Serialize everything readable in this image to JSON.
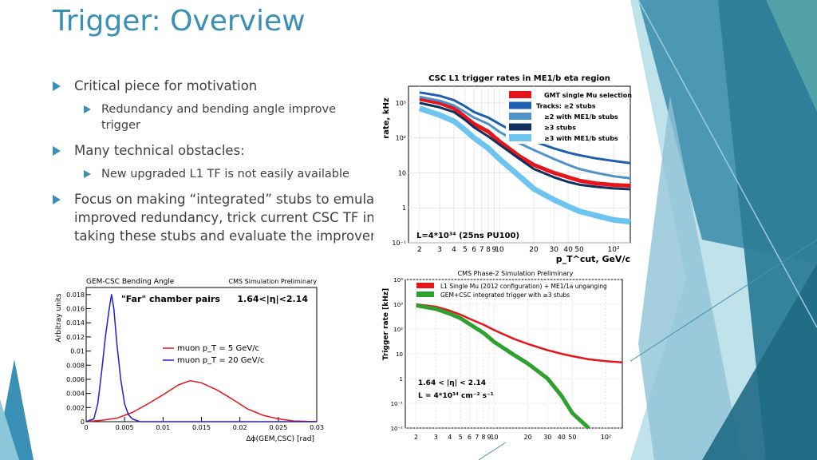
{
  "slide": {
    "title": "Trigger: Overview",
    "bullets": [
      {
        "text": "Critical piece for motivation",
        "sub": [
          "Redundancy and bending angle improve trigger"
        ]
      },
      {
        "text": "Many technical obstacles:",
        "sub": [
          "New upgraded L1 TF is not easily available"
        ]
      },
      {
        "text": "Focus on making “integrated” stubs to emulate improved redundancy, trick current CSC TF into taking these stubs and evaluate the improvement",
        "sub": []
      }
    ]
  },
  "colors": {
    "title": "#3a8fb4",
    "accent_dark": "#2b7a9e",
    "accent_light": "#8cc6db"
  },
  "chart_data": [
    {
      "type": "line",
      "title": "CSC L1 trigger rates in ME1/b eta region",
      "xlabel": "p_T^cut, GeV/c",
      "ylabel": "rate, kHz",
      "xscale": "log",
      "yscale": "log",
      "xlim": [
        1.6,
        140
      ],
      "ylim": [
        0.1,
        3000
      ],
      "xtick_labels": [
        "2",
        "3",
        "4",
        "5",
        "6",
        "7",
        "8",
        "9",
        "10",
        "20",
        "30",
        "40",
        "50",
        "10²"
      ],
      "ytick_labels": [
        "10⁻¹",
        "1",
        "10",
        "10²",
        "10³"
      ],
      "annotation": "L=4*10³⁴ (25ns PU100)",
      "legend_position": "top-right",
      "series": [
        {
          "name": "GMT single Mu selection",
          "color": "#e8141c",
          "x": [
            2,
            3,
            4,
            5,
            6,
            8,
            10,
            15,
            20,
            30,
            40,
            50,
            70,
            100,
            140
          ],
          "y": [
            1300,
            1000,
            700,
            400,
            250,
            150,
            80,
            30,
            17,
            10,
            7.5,
            6,
            5,
            4.5,
            4.3
          ]
        },
        {
          "name": "Tracks: ≥2 stubs",
          "color": "#1f5fb0",
          "x": [
            2,
            3,
            4,
            5,
            6,
            8,
            10,
            15,
            20,
            30,
            40,
            50,
            70,
            100,
            140
          ],
          "y": [
            2000,
            1600,
            1200,
            800,
            550,
            380,
            250,
            120,
            80,
            50,
            38,
            32,
            26,
            22,
            19
          ]
        },
        {
          "name": "≥2 with ME1/b stubs",
          "color": "#4d92c8",
          "x": [
            2,
            3,
            4,
            5,
            6,
            8,
            10,
            15,
            20,
            30,
            40,
            50,
            70,
            100,
            140
          ],
          "y": [
            1500,
            1150,
            850,
            550,
            380,
            250,
            150,
            70,
            45,
            25,
            17,
            13,
            10,
            8,
            7
          ]
        },
        {
          "name": "≥3 stubs",
          "color": "#10305e",
          "x": [
            2,
            3,
            4,
            5,
            6,
            8,
            10,
            15,
            20,
            30,
            40,
            50,
            70,
            100,
            140
          ],
          "y": [
            1000,
            750,
            550,
            330,
            200,
            110,
            65,
            25,
            13,
            7.5,
            5.5,
            4.6,
            4,
            3.6,
            3.4
          ]
        },
        {
          "name": "≥3 with ME1/b stubs",
          "color": "#6ec4f0",
          "x": [
            2,
            3,
            4,
            5,
            6,
            8,
            10,
            15,
            20,
            30,
            40,
            50,
            70,
            100,
            140
          ],
          "y": [
            700,
            450,
            300,
            170,
            100,
            50,
            25,
            8,
            3.5,
            1.7,
            1.1,
            0.8,
            0.6,
            0.45,
            0.4
          ]
        }
      ]
    },
    {
      "type": "line",
      "title": "GEM-CSC Bending Angle",
      "subtitle": "CMS Simulation Preliminary",
      "xlabel": "Δϕ(GEM,CSC) [rad]",
      "ylabel": "Arbitray units",
      "xlim": [
        0,
        0.03
      ],
      "ylim": [
        0,
        0.019
      ],
      "xtick_labels": [
        "0",
        "0.005",
        "0.01",
        "0.015",
        "0.02",
        "0.025",
        "0.03"
      ],
      "ytick_labels": [
        "0",
        "0.002",
        "0.004",
        "0.006",
        "0.008",
        "0.01",
        "0.012",
        "0.014",
        "0.016",
        "0.018"
      ],
      "annotations": [
        "\"Far\" chamber pairs",
        "1.64<|η|<2.14"
      ],
      "legend_position": "center-right",
      "series": [
        {
          "name": "muon p_T = 5 GeV/c",
          "color": "#e8141c",
          "x": [
            0,
            0.002,
            0.004,
            0.006,
            0.008,
            0.01,
            0.012,
            0.0135,
            0.015,
            0.017,
            0.019,
            0.021,
            0.023,
            0.025,
            0.027,
            0.03
          ],
          "y": [
            0,
            0.0002,
            0.0005,
            0.0013,
            0.0025,
            0.0038,
            0.0052,
            0.0058,
            0.0055,
            0.0045,
            0.0032,
            0.0018,
            0.0009,
            0.0004,
            0.0001,
            0
          ]
        },
        {
          "name": "muon p_T = 20 GeV/c",
          "color": "#1f1fd0",
          "x": [
            0,
            0.001,
            0.0015,
            0.002,
            0.0025,
            0.003,
            0.0033,
            0.0036,
            0.004,
            0.0045,
            0.005,
            0.0055,
            0.006,
            0.007,
            0.03
          ],
          "y": [
            0,
            0.0004,
            0.0025,
            0.007,
            0.012,
            0.016,
            0.018,
            0.016,
            0.011,
            0.006,
            0.0025,
            0.001,
            0.0004,
            0,
            0
          ]
        }
      ]
    },
    {
      "type": "line",
      "title": "CMS Phase-2 Simulation Preliminary",
      "xlabel": "",
      "ylabel": "Trigger rate [kHz]",
      "xscale": "log",
      "yscale": "log",
      "xlim": [
        1.6,
        140
      ],
      "ylim": [
        0.01,
        10000
      ],
      "xtick_labels": [
        "2",
        "3",
        "4",
        "5",
        "6",
        "7",
        "8",
        "9",
        "10",
        "20",
        "30",
        "40",
        "50",
        "10²"
      ],
      "ytick_labels": [
        "10⁻²",
        "10⁻¹",
        "1",
        "10",
        "10²",
        "10³",
        "10⁴"
      ],
      "annotations": [
        "1.64 < |η| < 2.14",
        "L = 4*10³⁴ cm⁻² s⁻¹"
      ],
      "legend_position": "top",
      "series": [
        {
          "name": "L1 Single Mu (2012 configuration) + ME1/1a unganging",
          "color": "#e8141c",
          "x": [
            2,
            3,
            4,
            5,
            6,
            8,
            10,
            15,
            20,
            30,
            40,
            50,
            70,
            100,
            140
          ],
          "y": [
            1000,
            800,
            550,
            380,
            260,
            150,
            90,
            40,
            25,
            14,
            10,
            8,
            6,
            5,
            4.5
          ]
        },
        {
          "name": "GEM+CSC integrated trigger with ≥3 stubs",
          "color": "#2ea02e",
          "x": [
            2,
            3,
            4,
            5,
            6,
            8,
            10,
            15,
            20,
            30,
            40,
            50,
            70
          ],
          "y": [
            900,
            650,
            420,
            270,
            160,
            70,
            30,
            9,
            4,
            1,
            0.2,
            0.04,
            0.01
          ]
        }
      ]
    }
  ]
}
